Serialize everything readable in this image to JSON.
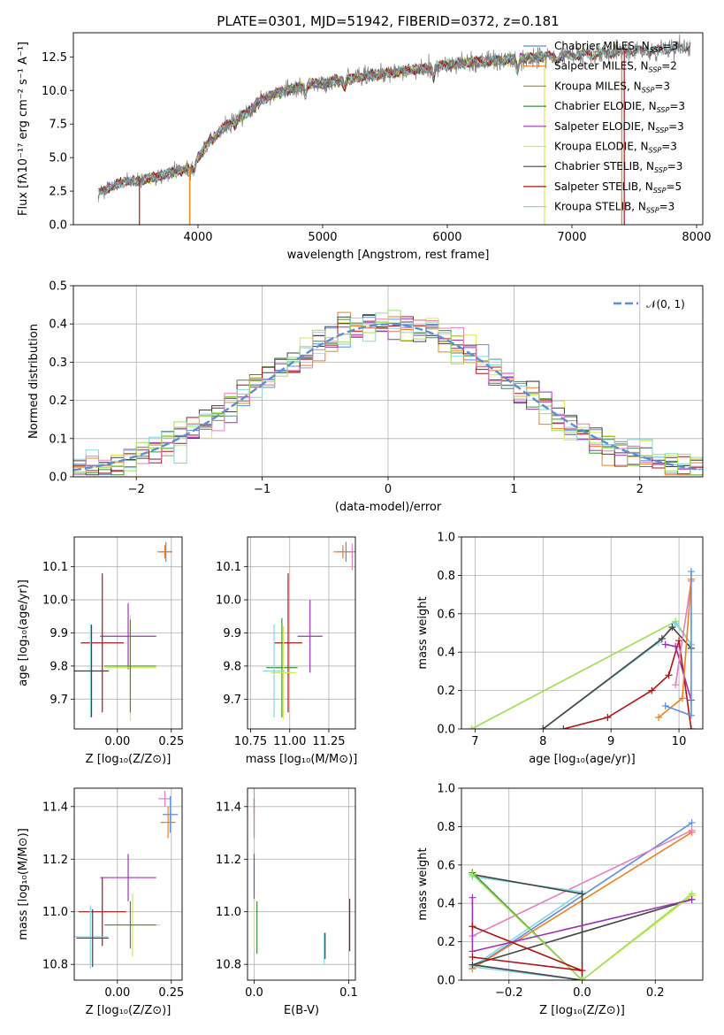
{
  "colors": {
    "Chabrier MILES": "#5b8ee6",
    "Salpeter MILES": "#f07f1e",
    "Kroupa MILES": "#b3942d",
    "Chabrier ELODIE": "#3f8f3f",
    "Salpeter ELODIE": "#9c35b3",
    "Kroupa ELODIE": "#d8e84a",
    "Chabrier STELIB": "#444444",
    "Salpeter STELIB": "#b01414",
    "Kroupa STELIB": "#86d7e0",
    "pink": "#e57fbf",
    "lime": "#9fe05a",
    "gray": "#7f7f7f",
    "normal": "#5b8ed6"
  },
  "chart_data": [
    {
      "id": "spectrum",
      "type": "line",
      "title": "PLATE=0301, MJD=51942, FIBERID=0372, z=0.181",
      "xlabel": "wavelength [Angstrom, rest frame]",
      "ylabel": "Flux [fλ10⁻¹⁷ erg cm⁻² s⁻¹ A⁻¹]",
      "xlim": [
        3000,
        8050
      ],
      "ylim": [
        0,
        14.3
      ],
      "xticks": [
        4000,
        5000,
        6000,
        7000,
        8000
      ],
      "yticks": [
        0.0,
        2.5,
        5.0,
        7.5,
        10.0,
        12.5
      ],
      "grid": false,
      "legend_position": "top-right",
      "legend": [
        {
          "label": "Chabrier MILES, N",
          "sub": "SSP",
          "eq": "=3",
          "color": "Chabrier MILES"
        },
        {
          "label": "Salpeter MILES, N",
          "sub": "SSP",
          "eq": "=2",
          "color": "Salpeter MILES"
        },
        {
          "label": "Kroupa MILES, N",
          "sub": "SSP",
          "eq": "=3",
          "color": "Kroupa MILES"
        },
        {
          "label": "Chabrier ELODIE, N",
          "sub": "SSP",
          "eq": "=3",
          "color": "Chabrier ELODIE"
        },
        {
          "label": "Salpeter ELODIE, N",
          "sub": "SSP",
          "eq": "=3",
          "color": "Salpeter ELODIE"
        },
        {
          "label": "Kroupa ELODIE, N",
          "sub": "SSP",
          "eq": "=3",
          "color": "Kroupa ELODIE"
        },
        {
          "label": "Chabrier STELIB, N",
          "sub": "SSP",
          "eq": "=3",
          "color": "Chabrier STELIB"
        },
        {
          "label": "Salpeter STELIB, N",
          "sub": "SSP",
          "eq": "=5",
          "color": "Salpeter STELIB"
        },
        {
          "label": "Kroupa STELIB, N",
          "sub": "SSP",
          "eq": "=3",
          "color": "Kroupa STELIB"
        }
      ],
      "continuum": [
        [
          3200,
          2.4
        ],
        [
          3400,
          3.2
        ],
        [
          3600,
          3.4
        ],
        [
          3800,
          3.9
        ],
        [
          3950,
          4.3
        ],
        [
          4000,
          5.0
        ],
        [
          4100,
          6.2
        ],
        [
          4200,
          7.2
        ],
        [
          4300,
          7.8
        ],
        [
          4400,
          8.4
        ],
        [
          4500,
          9.2
        ],
        [
          4600,
          9.7
        ],
        [
          4700,
          10.0
        ],
        [
          4800,
          10.2
        ],
        [
          4900,
          10.5
        ],
        [
          5000,
          10.5
        ],
        [
          5100,
          10.7
        ],
        [
          5200,
          10.8
        ],
        [
          5300,
          11.0
        ],
        [
          5400,
          11.2
        ],
        [
          5500,
          11.2
        ],
        [
          5600,
          11.4
        ],
        [
          5800,
          11.6
        ],
        [
          6000,
          11.9
        ],
        [
          6200,
          12.1
        ],
        [
          6400,
          12.2
        ],
        [
          6600,
          12.4
        ],
        [
          6800,
          12.5
        ],
        [
          7000,
          12.6
        ],
        [
          7200,
          12.7
        ],
        [
          7400,
          12.9
        ],
        [
          7600,
          13.0
        ],
        [
          7800,
          13.1
        ],
        [
          7950,
          13.3
        ]
      ],
      "absorption": [
        [
          3934,
          3.9
        ],
        [
          3969,
          4.0
        ],
        [
          4101,
          6.4
        ],
        [
          4300,
          7.4
        ],
        [
          4861,
          9.7
        ],
        [
          5175,
          10.2
        ],
        [
          5890,
          11.0
        ],
        [
          6563,
          11.5
        ]
      ],
      "drops": [
        [
          3530,
          "Salpeter STELIB"
        ],
        [
          3930,
          "Kroupa ELODIE"
        ],
        [
          3935,
          "Salpeter MILES"
        ],
        [
          6780,
          "Kroupa ELODIE"
        ],
        [
          7400,
          "Salpeter MILES"
        ],
        [
          7420,
          "Salpeter STELIB"
        ]
      ]
    },
    {
      "id": "residuals",
      "type": "histogram",
      "xlabel": "(data-model)/error",
      "ylabel": "Normed distribution",
      "xlim": [
        -2.5,
        2.5
      ],
      "ylim": [
        0,
        0.5
      ],
      "xticks": [
        -2,
        -1,
        0,
        1,
        2
      ],
      "yticks": [
        0.0,
        0.1,
        0.2,
        0.3,
        0.4,
        0.5
      ],
      "grid": true,
      "bin_width": 0.1,
      "legend_position": "top-right",
      "legend_label": "𝒩(0, 1)",
      "reference_curve": {
        "type": "normal",
        "mean": 0,
        "sigma": 1,
        "color": "normal"
      }
    },
    {
      "id": "age_vs_Z",
      "type": "errorbar",
      "xlabel": "Z [log₁₀(Z/Z⊙)]",
      "ylabel": "age  [log₁₀(age/yr)]",
      "xlim": [
        -0.2,
        0.3
      ],
      "ylim": [
        9.61,
        10.19
      ],
      "xticks": [
        0.0,
        0.25
      ],
      "yticks": [
        9.7,
        9.8,
        9.9,
        10.0,
        10.1
      ],
      "grid": true,
      "points": [
        {
          "x": 0.22,
          "y": 10.145,
          "xe": 0.03,
          "ye": 0.02,
          "c": "pink"
        },
        {
          "x": 0.225,
          "y": 10.145,
          "xe": 0.03,
          "ye": 0.03,
          "c": "Chabrier MILES"
        },
        {
          "x": 0.22,
          "y": 10.145,
          "xe": 0.035,
          "ye": 0.02,
          "c": "Salpeter MILES"
        },
        {
          "x": 0.05,
          "y": 9.89,
          "xe": 0.13,
          "ye": 0.1,
          "c": "Salpeter ELODIE"
        },
        {
          "x": -0.07,
          "y": 9.87,
          "xe": 0.1,
          "ye": 0.21,
          "c": "Salpeter STELIB"
        },
        {
          "x": 0.06,
          "y": 9.795,
          "xe": 0.12,
          "ye": 0.16,
          "c": "Kroupa ELODIE"
        },
        {
          "x": 0.06,
          "y": 9.8,
          "xe": 0.12,
          "ye": 0.14,
          "c": "Chabrier ELODIE"
        },
        {
          "x": -0.125,
          "y": 9.785,
          "xe": 0.08,
          "ye": 0.14,
          "c": "Kroupa STELIB"
        },
        {
          "x": -0.12,
          "y": 9.785,
          "xe": 0.08,
          "ye": 0.14,
          "c": "Chabrier STELIB"
        }
      ]
    },
    {
      "id": "age_vs_mass",
      "type": "errorbar",
      "xlabel": "mass [log₁₀(M/M⊙)]",
      "ylabel": "",
      "xlim": [
        10.73,
        11.42
      ],
      "ylim": [
        9.61,
        10.19
      ],
      "xticks": [
        10.75,
        11.0,
        11.25
      ],
      "yticks": [
        9.7,
        9.8,
        9.9,
        10.0,
        10.1
      ],
      "grid": true,
      "points": [
        {
          "x": 11.36,
          "y": 10.145,
          "xe": 0.06,
          "ye": 0.03,
          "c": "Chabrier MILES"
        },
        {
          "x": 11.34,
          "y": 10.145,
          "xe": 0.06,
          "ye": 0.02,
          "c": "Salpeter MILES"
        },
        {
          "x": 11.4,
          "y": 10.13,
          "xe": 0.005,
          "ye": 0.04,
          "c": "pink"
        },
        {
          "x": 11.13,
          "y": 9.89,
          "xe": 0.08,
          "ye": 0.11,
          "c": "Salpeter ELODIE"
        },
        {
          "x": 10.99,
          "y": 9.87,
          "xe": 0.09,
          "ye": 0.21,
          "c": "Salpeter STELIB"
        },
        {
          "x": 10.95,
          "y": 9.795,
          "xe": 0.1,
          "ye": 0.15,
          "c": "Chabrier ELODIE"
        },
        {
          "x": 10.96,
          "y": 9.78,
          "xe": 0.08,
          "ye": 0.14,
          "c": "Kroupa ELODIE"
        },
        {
          "x": 10.9,
          "y": 9.785,
          "xe": 0.07,
          "ye": 0.14,
          "c": "Kroupa STELIB"
        }
      ]
    },
    {
      "id": "weight_vs_age",
      "type": "line",
      "xlabel": "age  [log₁₀(age/yr)]",
      "ylabel": "mass weight",
      "xlim": [
        6.8,
        10.35
      ],
      "ylim": [
        0,
        1
      ],
      "xticks": [
        7,
        8,
        9,
        10
      ],
      "yticks": [
        0.0,
        0.2,
        0.4,
        0.6,
        0.8,
        1.0
      ],
      "grid": true,
      "lines": [
        {
          "c": "Kroupa ELODIE",
          "pts": [
            [
              6.95,
              0.0
            ],
            [
              9.95,
              0.56
            ],
            [
              10.18,
              0.44
            ]
          ]
        },
        {
          "c": "lime",
          "pts": [
            [
              6.95,
              0.0
            ],
            [
              9.95,
              0.56
            ],
            [
              10.18,
              0.44
            ]
          ]
        },
        {
          "c": "Kroupa STELIB",
          "pts": [
            [
              8.0,
              0.0
            ],
            [
              9.7,
              0.45
            ],
            [
              9.95,
              0.55
            ],
            [
              10.18,
              0.44
            ]
          ]
        },
        {
          "c": "Chabrier STELIB",
          "pts": [
            [
              8.0,
              0.0
            ],
            [
              9.75,
              0.47
            ],
            [
              9.9,
              0.53
            ],
            [
              10.18,
              0.42
            ]
          ]
        },
        {
          "c": "Salpeter STELIB",
          "pts": [
            [
              8.3,
              0.0
            ],
            [
              8.95,
              0.06
            ],
            [
              9.6,
              0.2
            ],
            [
              9.85,
              0.28
            ],
            [
              10.0,
              0.46
            ],
            [
              10.18,
              0.0
            ]
          ]
        },
        {
          "c": "Salpeter ELODIE",
          "pts": [
            [
              9.8,
              0.44
            ],
            [
              9.95,
              0.43
            ],
            [
              10.18,
              0.15
            ]
          ]
        },
        {
          "c": "pink",
          "pts": [
            [
              9.95,
              0.23
            ],
            [
              10.18,
              0.77
            ]
          ]
        },
        {
          "c": "Salpeter MILES",
          "pts": [
            [
              9.7,
              0.06
            ],
            [
              10.05,
              0.16
            ],
            [
              10.18,
              0.78
            ]
          ]
        },
        {
          "c": "Chabrier MILES",
          "pts": [
            [
              9.8,
              0.12
            ],
            [
              10.18,
              0.07
            ],
            [
              10.18,
              0.82
            ]
          ]
        }
      ]
    },
    {
      "id": "mass_vs_Z",
      "type": "errorbar",
      "xlabel": "Z [log₁₀(Z/Z⊙)]",
      "ylabel": "mass [log₁₀(M/M⊙)]",
      "xlim": [
        -0.2,
        0.3
      ],
      "ylim": [
        10.74,
        11.47
      ],
      "xticks": [
        0.0,
        0.25
      ],
      "yticks": [
        10.8,
        11.0,
        11.2,
        11.4
      ],
      "grid": true,
      "points": [
        {
          "x": 0.22,
          "y": 11.43,
          "xe": 0.03,
          "ye": 0.03,
          "c": "pink"
        },
        {
          "x": 0.245,
          "y": 11.37,
          "xe": 0.035,
          "ye": 0.07,
          "c": "Chabrier MILES"
        },
        {
          "x": 0.235,
          "y": 11.34,
          "xe": 0.035,
          "ye": 0.06,
          "c": "Salpeter MILES"
        },
        {
          "x": 0.05,
          "y": 11.13,
          "xe": 0.13,
          "ye": 0.09,
          "c": "Salpeter ELODIE"
        },
        {
          "x": -0.07,
          "y": 11.0,
          "xe": 0.11,
          "ye": 0.13,
          "c": "Salpeter STELIB"
        },
        {
          "x": 0.07,
          "y": 10.95,
          "xe": 0.13,
          "ye": 0.12,
          "c": "Kroupa ELODIE"
        },
        {
          "x": 0.06,
          "y": 10.95,
          "xe": 0.12,
          "ye": 0.09,
          "c": "Chabrier ELODIE"
        },
        {
          "x": -0.125,
          "y": 10.905,
          "xe": 0.08,
          "ye": 0.12,
          "c": "Kroupa STELIB"
        },
        {
          "x": -0.115,
          "y": 10.9,
          "xe": 0.075,
          "ye": 0.11,
          "c": "Chabrier STELIB"
        }
      ]
    },
    {
      "id": "mass_vs_ebv",
      "type": "errorbar",
      "xlabel": "E(B-V)",
      "ylabel": "",
      "xlim": [
        -0.007,
        0.107
      ],
      "ylim": [
        10.74,
        11.47
      ],
      "xticks": [
        0.0,
        0.1
      ],
      "yticks": [
        10.8,
        11.0,
        11.2,
        11.4
      ],
      "grid": true,
      "points": [
        {
          "x": 0.0,
          "y": 11.42,
          "xe": 0,
          "ye": 0.05,
          "c": "pink"
        },
        {
          "x": 0.0,
          "y": 11.36,
          "xe": 0,
          "ye": 0.07,
          "c": "Chabrier MILES"
        },
        {
          "x": 0.0,
          "y": 11.34,
          "xe": 0,
          "ye": 0.06,
          "c": "Salpeter MILES"
        },
        {
          "x": 0.0,
          "y": 11.13,
          "xe": 0,
          "ye": 0.09,
          "c": "Salpeter ELODIE"
        },
        {
          "x": 0.0,
          "y": 10.95,
          "xe": 0,
          "ye": 0.1,
          "c": "Kroupa ELODIE"
        },
        {
          "x": 0.003,
          "y": 10.94,
          "xe": 0,
          "ye": 0.1,
          "c": "Chabrier ELODIE"
        },
        {
          "x": 0.074,
          "y": 10.86,
          "xe": 0,
          "ye": 0.06,
          "c": "Kroupa STELIB"
        },
        {
          "x": 0.075,
          "y": 10.87,
          "xe": 0,
          "ye": 0.05,
          "c": "Chabrier STELIB"
        },
        {
          "x": 0.101,
          "y": 10.95,
          "xe": 0,
          "ye": 0.1,
          "c": "Salpeter STELIB"
        }
      ]
    },
    {
      "id": "weight_vs_Z",
      "type": "line",
      "xlabel": "Z [log₁₀(Z/Z⊙)]",
      "ylabel": "mass weight",
      "xlim": [
        -0.33,
        0.33
      ],
      "ylim": [
        0,
        1
      ],
      "xticks": [
        -0.2,
        0.0,
        0.2
      ],
      "yticks": [
        0.0,
        0.2,
        0.4,
        0.6,
        0.8,
        1.0
      ],
      "grid": true,
      "lines": [
        {
          "c": "Chabrier MILES",
          "pts": [
            [
              -0.3,
              0.06
            ],
            [
              0.3,
              0.82
            ]
          ]
        },
        {
          "c": "Salpeter MILES",
          "pts": [
            [
              -0.3,
              0.06
            ],
            [
              0.3,
              0.77
            ]
          ]
        },
        {
          "c": "pink",
          "pts": [
            [
              -0.3,
              0.23
            ],
            [
              0.3,
              0.78
            ]
          ]
        },
        {
          "c": "Kroupa STELIB",
          "pts": [
            [
              -0.3,
              0.54
            ],
            [
              0.0,
              0.46
            ],
            [
              -0.3,
              0.07
            ],
            [
              0.0,
              0.0
            ]
          ]
        },
        {
          "c": "Chabrier STELIB",
          "pts": [
            [
              -0.3,
              0.55
            ],
            [
              0.0,
              0.45
            ],
            [
              0.0,
              0.0
            ],
            [
              -0.3,
              0.08
            ],
            [
              0.3,
              0.42
            ]
          ]
        },
        {
          "c": "Kroupa ELODIE",
          "pts": [
            [
              -0.3,
              0.56
            ],
            [
              0.0,
              0.0
            ],
            [
              0.3,
              0.44
            ]
          ]
        },
        {
          "c": "Chabrier ELODIE",
          "pts": [
            [
              -0.3,
              0.56
            ],
            [
              0.0,
              0.0
            ]
          ]
        },
        {
          "c": "lime",
          "pts": [
            [
              -0.3,
              0.55
            ],
            [
              0.0,
              0.0
            ],
            [
              0.3,
              0.45
            ]
          ]
        },
        {
          "c": "Salpeter ELODIE",
          "pts": [
            [
              -0.3,
              0.43
            ],
            [
              -0.3,
              0.15
            ],
            [
              0.3,
              0.42
            ]
          ]
        },
        {
          "c": "Salpeter STELIB",
          "pts": [
            [
              -0.3,
              0.28
            ],
            [
              0.0,
              0.05
            ],
            [
              -0.3,
              0.12
            ]
          ]
        }
      ]
    }
  ]
}
